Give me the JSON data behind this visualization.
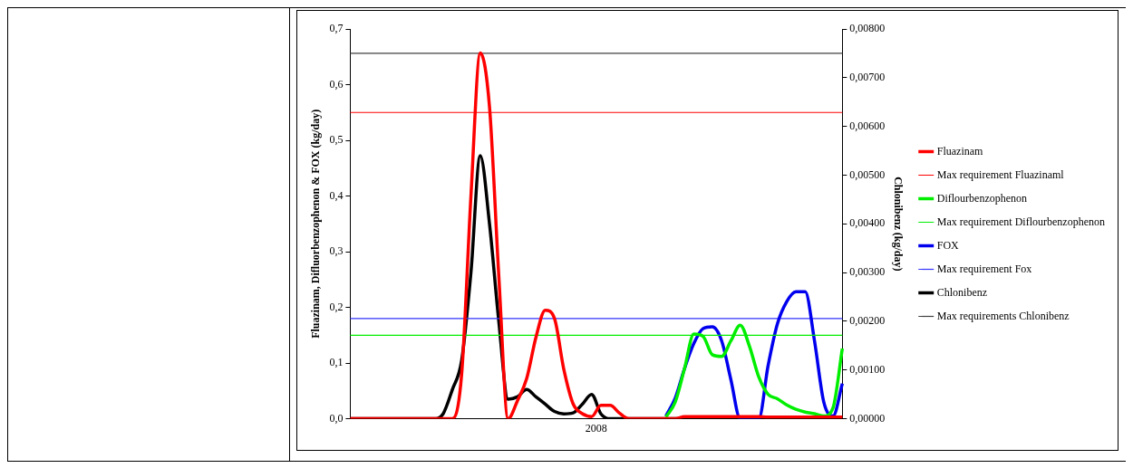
{
  "chart_data": {
    "type": "line",
    "xlabel": "2008",
    "ylabel": "Fluazinam, Difluorbenzophenon & FOX (kg/day)",
    "y2label": "Chlonibenz (kg/day)",
    "categories": [
      null,
      null,
      null,
      null,
      null,
      null,
      null,
      null,
      null,
      null,
      null,
      null,
      null,
      null,
      null,
      null,
      null,
      null,
      null,
      null,
      null,
      null,
      null,
      null,
      null,
      null,
      null,
      null,
      null,
      null,
      null,
      null,
      null,
      null,
      null,
      null,
      null,
      null,
      null,
      null,
      null,
      null,
      null,
      null,
      null,
      null,
      null,
      null,
      null,
      null,
      null,
      null,
      null,
      null
    ],
    "ylim": [
      0,
      0.7
    ],
    "yticks": [
      {
        "value": 0,
        "label": "0,0"
      },
      {
        "value": 0.1,
        "label": "0,1"
      },
      {
        "value": 0.2,
        "label": "0,2"
      },
      {
        "value": 0.3,
        "label": "0,3"
      },
      {
        "value": 0.4,
        "label": "0,4"
      },
      {
        "value": 0.5,
        "label": "0,5"
      },
      {
        "value": 0.6,
        "label": "0,6"
      },
      {
        "value": 0.7,
        "label": "0,7"
      }
    ],
    "y2lim": [
      0,
      0.008
    ],
    "y2ticks": [
      {
        "value": 0,
        "label": "0,00000"
      },
      {
        "value": 0.001,
        "label": "0,00100"
      },
      {
        "value": 0.002,
        "label": "0,00200"
      },
      {
        "value": 0.003,
        "label": "0,00300"
      },
      {
        "value": 0.004,
        "label": "0,00400"
      },
      {
        "value": 0.005,
        "label": "0,00500"
      },
      {
        "value": 0.006,
        "label": "0,00600"
      },
      {
        "value": 0.007,
        "label": "0,00700"
      },
      {
        "value": 0.008,
        "label": "0,00800"
      }
    ],
    "grid": false,
    "legend": "right",
    "marker": "none",
    "series": [
      {
        "name": "Fluazinam",
        "color": "#ff0000",
        "values": [
          0,
          0,
          0,
          0,
          0,
          0,
          0,
          0,
          0,
          0,
          0,
          0,
          0.08,
          0.4,
          0.657,
          0.56,
          0.257,
          0,
          0.032,
          0.072,
          0.146,
          0.195,
          0.18,
          0.089,
          0.027,
          0.009,
          0.004,
          0.024,
          0.024,
          0.01,
          0,
          0,
          0,
          0,
          0,
          0,
          0.004,
          0.004,
          0.004,
          0.004,
          0.004,
          0.004,
          0.004,
          0.004,
          0.004,
          0.003,
          0.003,
          0.003,
          0.003,
          0.003,
          0.003,
          0.003,
          0.003,
          0.003
        ]
      },
      {
        "name": "Max requirement Fluazinaml",
        "color": "#ff0000",
        "values": [
          0.55,
          0.55,
          0.55,
          0.55,
          0.55,
          0.55,
          0.55,
          0.55,
          0.55,
          0.55,
          0.55,
          0.55,
          0.55,
          0.55,
          0.55,
          0.55,
          0.55,
          0.55,
          0.55,
          0.55,
          0.55,
          0.55,
          0.55,
          0.55,
          0.55,
          0.55,
          0.55,
          0.55,
          0.55,
          0.55,
          0.55,
          0.55,
          0.55,
          0.55,
          0.55,
          0.55,
          0.55,
          0.55,
          0.55,
          0.55,
          0.55,
          0.55,
          0.55,
          0.55,
          0.55,
          0.55,
          0.55,
          0.55,
          0.55,
          0.55,
          0.55,
          0.55,
          0.55,
          0.55
        ]
      },
      {
        "name": "Diflourbenzophenon",
        "color": "#00ee00",
        "values": [
          null,
          null,
          null,
          null,
          null,
          null,
          null,
          null,
          null,
          null,
          null,
          null,
          null,
          null,
          null,
          null,
          null,
          null,
          null,
          null,
          null,
          null,
          null,
          null,
          null,
          null,
          null,
          null,
          null,
          null,
          null,
          null,
          null,
          null,
          0.003,
          0.03,
          0.09,
          0.152,
          0.148,
          0.115,
          0.112,
          0.14,
          0.168,
          0.13,
          0.075,
          0.044,
          0.036,
          0.025,
          0.017,
          0.012,
          0.009,
          0.005,
          0.02,
          0.126
        ]
      },
      {
        "name": "Max requirement Diflourbenzophenon",
        "color": "#00ee00",
        "values": [
          0.15,
          0.15,
          0.15,
          0.15,
          0.15,
          0.15,
          0.15,
          0.15,
          0.15,
          0.15,
          0.15,
          0.15,
          0.15,
          0.15,
          0.15,
          0.15,
          0.15,
          0.15,
          0.15,
          0.15,
          0.15,
          0.15,
          0.15,
          0.15,
          0.15,
          0.15,
          0.15,
          0.15,
          0.15,
          0.15,
          0.15,
          0.15,
          0.15,
          0.15,
          0.15,
          0.15,
          0.15,
          0.15,
          0.15,
          0.15,
          0.15,
          0.15,
          0.15,
          0.15,
          0.15,
          0.15,
          0.15,
          0.15,
          0.15,
          0.15,
          0.15,
          0.15,
          0.15,
          0.15
        ]
      },
      {
        "name": "FOX",
        "color": "#0000ee",
        "values": [
          null,
          null,
          null,
          null,
          null,
          null,
          null,
          null,
          null,
          null,
          null,
          null,
          null,
          null,
          null,
          null,
          null,
          null,
          null,
          null,
          null,
          null,
          null,
          null,
          null,
          null,
          null,
          null,
          null,
          null,
          null,
          null,
          null,
          null,
          0.005,
          0.037,
          0.09,
          0.135,
          0.162,
          0.165,
          0.14,
          0.07,
          0,
          0,
          0,
          0.095,
          0.17,
          0.21,
          0.228,
          0.228,
          0.14,
          0.03,
          0.005,
          0.063
        ]
      },
      {
        "name": "Max requirement Fox",
        "color": "#3333ff",
        "values": [
          0.18,
          0.18,
          0.18,
          0.18,
          0.18,
          0.18,
          0.18,
          0.18,
          0.18,
          0.18,
          0.18,
          0.18,
          0.18,
          0.18,
          0.18,
          0.18,
          0.18,
          0.18,
          0.18,
          0.18,
          0.18,
          0.18,
          0.18,
          0.18,
          0.18,
          0.18,
          0.18,
          0.18,
          0.18,
          0.18,
          0.18,
          0.18,
          0.18,
          0.18,
          0.18,
          0.18,
          0.18,
          0.18,
          0.18,
          0.18,
          0.18,
          0.18,
          0.18,
          0.18,
          0.18,
          0.18,
          0.18,
          0.18,
          0.18,
          0.18,
          0.18,
          0.18,
          0.18,
          0.18
        ]
      },
      {
        "name": "Chlonibenz",
        "color": "#000000",
        "axis": "y2",
        "values": [
          0,
          0,
          0,
          0,
          0,
          0,
          0,
          0,
          0,
          0,
          0.0001,
          0.0006,
          0.0012,
          0.003,
          0.0054,
          0.004,
          0.002,
          0.0004,
          0.00045,
          0.0006,
          0.00045,
          0.0003,
          0.00015,
          0.0001,
          0.00012,
          0.0003,
          0.0005,
          0.0001,
          0,
          0,
          0,
          0,
          0,
          0,
          0,
          0,
          0,
          0,
          0,
          0,
          0,
          0,
          0,
          0,
          0,
          0,
          0,
          0,
          0,
          0,
          0,
          0,
          0,
          0
        ]
      },
      {
        "name": "Max requirements Chlonibenz",
        "color": "#404040",
        "axis": "y2",
        "values": [
          0.0075,
          0.0075,
          0.0075,
          0.0075,
          0.0075,
          0.0075,
          0.0075,
          0.0075,
          0.0075,
          0.0075,
          0.0075,
          0.0075,
          0.0075,
          0.0075,
          0.0075,
          0.0075,
          0.0075,
          0.0075,
          0.0075,
          0.0075,
          0.0075,
          0.0075,
          0.0075,
          0.0075,
          0.0075,
          0.0075,
          0.0075,
          0.0075,
          0.0075,
          0.0075,
          0.0075,
          0.0075,
          0.0075,
          0.0075,
          0.0075,
          0.0075,
          0.0075,
          0.0075,
          0.0075,
          0.0075,
          0.0075,
          0.0075,
          0.0075,
          0.0075,
          0.0075,
          0.0075,
          0.0075,
          0.0075,
          0.0075,
          0.0075,
          0.0075,
          0.0075,
          0.0075,
          0.0075
        ]
      }
    ]
  }
}
